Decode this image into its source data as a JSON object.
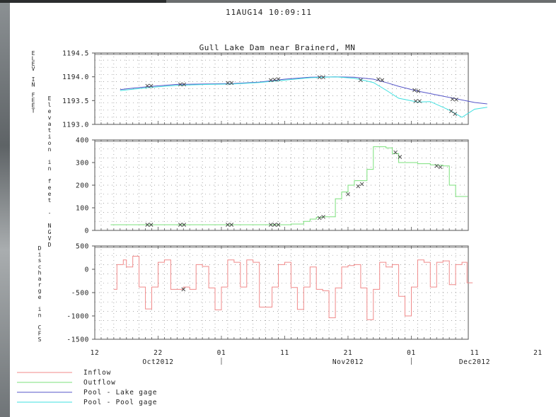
{
  "header": {
    "timestamp": "11AUG14  10:09:11"
  },
  "colors": {
    "inflow": "#f08a8a",
    "outflow": "#7be07b",
    "lake_gage": "#5555c8",
    "pool_gage": "#3fe0e0",
    "frame": "#555555",
    "grid": "#888888",
    "marker": "#444444"
  },
  "chart_data": {
    "type": "line",
    "title": "Gull Lake Dam near Brainerd, MN",
    "x_axis": {
      "domain": [
        12,
        71
      ],
      "ticks": [
        {
          "x": 12,
          "label": "12"
        },
        {
          "x": 22,
          "label": "22"
        },
        {
          "x": 32,
          "label": "01"
        },
        {
          "x": 42,
          "label": "11"
        },
        {
          "x": 52,
          "label": "21"
        },
        {
          "x": 62,
          "label": "01"
        },
        {
          "x": 72,
          "label": "11"
        },
        {
          "x": 82,
          "label": "21"
        }
      ],
      "month_labels": [
        {
          "x": 22,
          "label": "Oct2012"
        },
        {
          "x": 52,
          "label": "Nov2012"
        },
        {
          "x": 72,
          "label": "Dec2012"
        }
      ]
    },
    "panels": [
      {
        "id": "elevation",
        "ylabel": "ELEV IN FEET",
        "ylabel_secondary": "Elevation in feet - NGVD",
        "ylim": [
          1193.0,
          1194.5
        ],
        "yticks": [
          1194.5,
          1194.0,
          1193.5,
          1193.0
        ],
        "ytick_labels": [
          "1194.5",
          "1194.0",
          "1193.5",
          "1193.0"
        ],
        "series": [
          {
            "name": "Pool - Lake gage",
            "color_key": "lake_gage",
            "points": [
              [
                16,
                1193.73
              ],
              [
                18,
                1193.76
              ],
              [
                21,
                1193.8
              ],
              [
                25,
                1193.84
              ],
              [
                30,
                1193.85
              ],
              [
                34,
                1193.86
              ],
              [
                38,
                1193.89
              ],
              [
                42,
                1193.95
              ],
              [
                46,
                1193.99
              ],
              [
                50,
                1194.0
              ],
              [
                53,
                1193.99
              ],
              [
                56,
                1193.95
              ],
              [
                58,
                1193.88
              ],
              [
                60,
                1193.8
              ],
              [
                63,
                1193.7
              ],
              [
                66,
                1193.62
              ],
              [
                69,
                1193.54
              ],
              [
                72,
                1193.46
              ],
              [
                74,
                1193.43
              ]
            ]
          },
          {
            "name": "Pool - Pool gage",
            "color_key": "pool_gage",
            "points": [
              [
                16,
                1193.71
              ],
              [
                18,
                1193.74
              ],
              [
                21,
                1193.78
              ],
              [
                25,
                1193.82
              ],
              [
                30,
                1193.84
              ],
              [
                34,
                1193.85
              ],
              [
                38,
                1193.88
              ],
              [
                42,
                1193.93
              ],
              [
                46,
                1193.98
              ],
              [
                50,
                1194.0
              ],
              [
                53,
                1193.97
              ],
              [
                56,
                1193.88
              ],
              [
                58,
                1193.72
              ],
              [
                60,
                1193.55
              ],
              [
                63,
                1193.47
              ],
              [
                65,
                1193.48
              ],
              [
                68,
                1193.3
              ],
              [
                70,
                1193.15
              ],
              [
                72,
                1193.32
              ],
              [
                74,
                1193.36
              ]
            ]
          }
        ],
        "markers": [
          [
            20.3,
            1193.81
          ],
          [
            20.9,
            1193.81
          ],
          [
            25.5,
            1193.84
          ],
          [
            26.1,
            1193.84
          ],
          [
            33.0,
            1193.87
          ],
          [
            33.6,
            1193.87
          ],
          [
            39.8,
            1193.93
          ],
          [
            40.4,
            1193.94
          ],
          [
            41.0,
            1193.95
          ],
          [
            47.5,
            1193.99
          ],
          [
            48.1,
            1193.99
          ],
          [
            54.0,
            1193.93
          ],
          [
            56.8,
            1193.95
          ],
          [
            57.4,
            1193.93
          ],
          [
            62.5,
            1193.72
          ],
          [
            63.1,
            1193.7
          ],
          [
            62.7,
            1193.49
          ],
          [
            63.3,
            1193.49
          ],
          [
            68.3,
            1193.28
          ],
          [
            68.9,
            1193.22
          ],
          [
            68.5,
            1193.53
          ],
          [
            69.1,
            1193.52
          ]
        ]
      },
      {
        "id": "flow",
        "ylabel": "",
        "ylim": [
          0,
          400
        ],
        "yticks": [
          400,
          300,
          200,
          100,
          0
        ],
        "ytick_labels": [
          "400",
          "300",
          "200",
          "100",
          "0"
        ],
        "series": [
          {
            "name": "Outflow",
            "color_key": "outflow",
            "steps": [
              [
                14.5,
                25
              ],
              [
                42,
                25
              ],
              [
                43,
                28
              ],
              [
                45,
                40
              ],
              [
                46,
                50
              ],
              [
                47,
                58
              ],
              [
                48,
                60
              ],
              [
                50,
                140
              ],
              [
                51,
                170
              ],
              [
                52,
                200
              ],
              [
                53,
                220
              ],
              [
                54,
                220
              ],
              [
                55,
                270
              ],
              [
                56,
                370
              ],
              [
                58,
                365
              ],
              [
                59,
                340
              ],
              [
                60,
                300
              ],
              [
                63,
                295
              ],
              [
                65,
                290
              ],
              [
                66,
                288
              ],
              [
                67,
                285
              ],
              [
                68,
                200
              ],
              [
                69,
                150
              ],
              [
                70,
                150
              ]
            ]
          }
        ],
        "markers": [
          [
            20.3,
            25
          ],
          [
            20.9,
            25
          ],
          [
            25.5,
            25
          ],
          [
            26.1,
            25
          ],
          [
            33.0,
            25
          ],
          [
            33.6,
            25
          ],
          [
            39.8,
            25
          ],
          [
            40.4,
            25
          ],
          [
            41.0,
            25
          ],
          [
            47.5,
            55
          ],
          [
            48.1,
            60
          ],
          [
            52.0,
            160
          ],
          [
            53.6,
            195
          ],
          [
            54.2,
            205
          ],
          [
            59.5,
            345
          ],
          [
            60.2,
            325
          ],
          [
            66.0,
            285
          ],
          [
            66.6,
            280
          ]
        ]
      },
      {
        "id": "discharge",
        "ylabel": "Discharge in CFS",
        "ylim": [
          -1500,
          500
        ],
        "yticks": [
          500,
          0,
          -500,
          -1000,
          -1500
        ],
        "ytick_labels": [
          "500",
          "0",
          "-500",
          "-1000",
          "-1500"
        ],
        "series": [
          {
            "name": "Inflow",
            "color_key": "inflow",
            "steps": [
              [
                15,
                -430
              ],
              [
                15.5,
                100
              ],
              [
                16.5,
                200
              ],
              [
                17,
                50
              ],
              [
                18,
                280
              ],
              [
                19,
                -380
              ],
              [
                20,
                -850
              ],
              [
                21,
                -380
              ],
              [
                22,
                150
              ],
              [
                23,
                200
              ],
              [
                24,
                -430
              ],
              [
                26,
                -380
              ],
              [
                27,
                -430
              ],
              [
                28,
                100
              ],
              [
                29,
                60
              ],
              [
                30,
                -400
              ],
              [
                31,
                -870
              ],
              [
                32,
                -380
              ],
              [
                33,
                200
              ],
              [
                34,
                150
              ],
              [
                35,
                -380
              ],
              [
                36,
                200
              ],
              [
                37,
                150
              ],
              [
                38,
                -810
              ],
              [
                40,
                -380
              ],
              [
                41,
                100
              ],
              [
                42,
                150
              ],
              [
                43,
                -390
              ],
              [
                44,
                -860
              ],
              [
                45,
                -380
              ],
              [
                46,
                50
              ],
              [
                47,
                -430
              ],
              [
                48,
                -460
              ],
              [
                49,
                -1040
              ],
              [
                50,
                -400
              ],
              [
                51,
                50
              ],
              [
                52,
                80
              ],
              [
                53,
                100
              ],
              [
                54,
                -400
              ],
              [
                55,
                -1080
              ],
              [
                56,
                -430
              ],
              [
                57,
                150
              ],
              [
                58,
                50
              ],
              [
                59,
                100
              ],
              [
                60,
                -580
              ],
              [
                61,
                -1000
              ],
              [
                62,
                -380
              ],
              [
                63,
                200
              ],
              [
                64,
                150
              ],
              [
                65,
                -380
              ],
              [
                66,
                150
              ],
              [
                67,
                180
              ],
              [
                68,
                -330
              ],
              [
                69,
                100
              ],
              [
                70,
                150
              ],
              [
                70.8,
                -290
              ]
            ]
          }
        ],
        "markers": [
          [
            26.0,
            -430
          ]
        ]
      }
    ],
    "legend": {
      "placement": "bottom-left",
      "entries": [
        {
          "label": "Inflow",
          "color_key": "inflow"
        },
        {
          "label": "Outflow",
          "color_key": "outflow"
        },
        {
          "label": "Pool - Lake gage",
          "color_key": "lake_gage"
        },
        {
          "label": "Pool - Pool gage",
          "color_key": "pool_gage"
        }
      ]
    },
    "grid": true
  }
}
